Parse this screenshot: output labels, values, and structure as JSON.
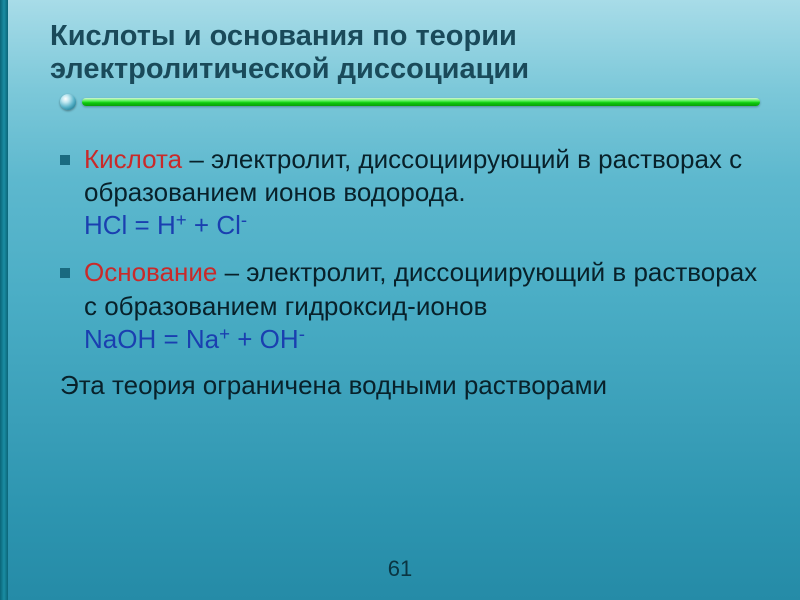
{
  "header": {
    "title_line1": "Кислоты и основания по теории",
    "title_line2": "электролитической диссоциации"
  },
  "bullets": [
    {
      "term": "Кислота",
      "term_color": "#c92a2a",
      "definition": " – электролит, диссоциирующий в растворах с образованием ионов водорода.",
      "formula_html": "HCl = H<span class='sup'>+</span> + Cl<span class='sup'>-</span>",
      "formula_color": "#1a3fb0"
    },
    {
      "term": "Основание",
      "term_color": "#c92a2a",
      "definition": " – электролит, диссоциирующий в растворах с образованием гидроксид-ионов",
      "formula_html": "NaOH = Na<span class='sup'>+</span> + OH<span class='sup'>-</span>",
      "formula_color": "#1a3fb0"
    }
  ],
  "footer_note": "Эта теория ограничена водными растворами",
  "page_number": "61",
  "styling": {
    "background_gradient": [
      "#a8dce8",
      "#7cc8d9",
      "#5db8ce",
      "#4aadc5",
      "#3a9fb9",
      "#2d95b0",
      "#258ba7"
    ],
    "title_color": "#1a4a5a",
    "title_fontsize": 29,
    "body_fontsize": 26,
    "body_color": "#08212a",
    "bullet_color": "#1a6a80",
    "divider_colors": [
      "#d4f5d4",
      "#7ff27f",
      "#3ae83a",
      "#0cc90c",
      "#0a9e0a"
    ],
    "left_border_colors": [
      "#0a6578",
      "#1a8da3"
    ],
    "font_family": "Arial"
  }
}
